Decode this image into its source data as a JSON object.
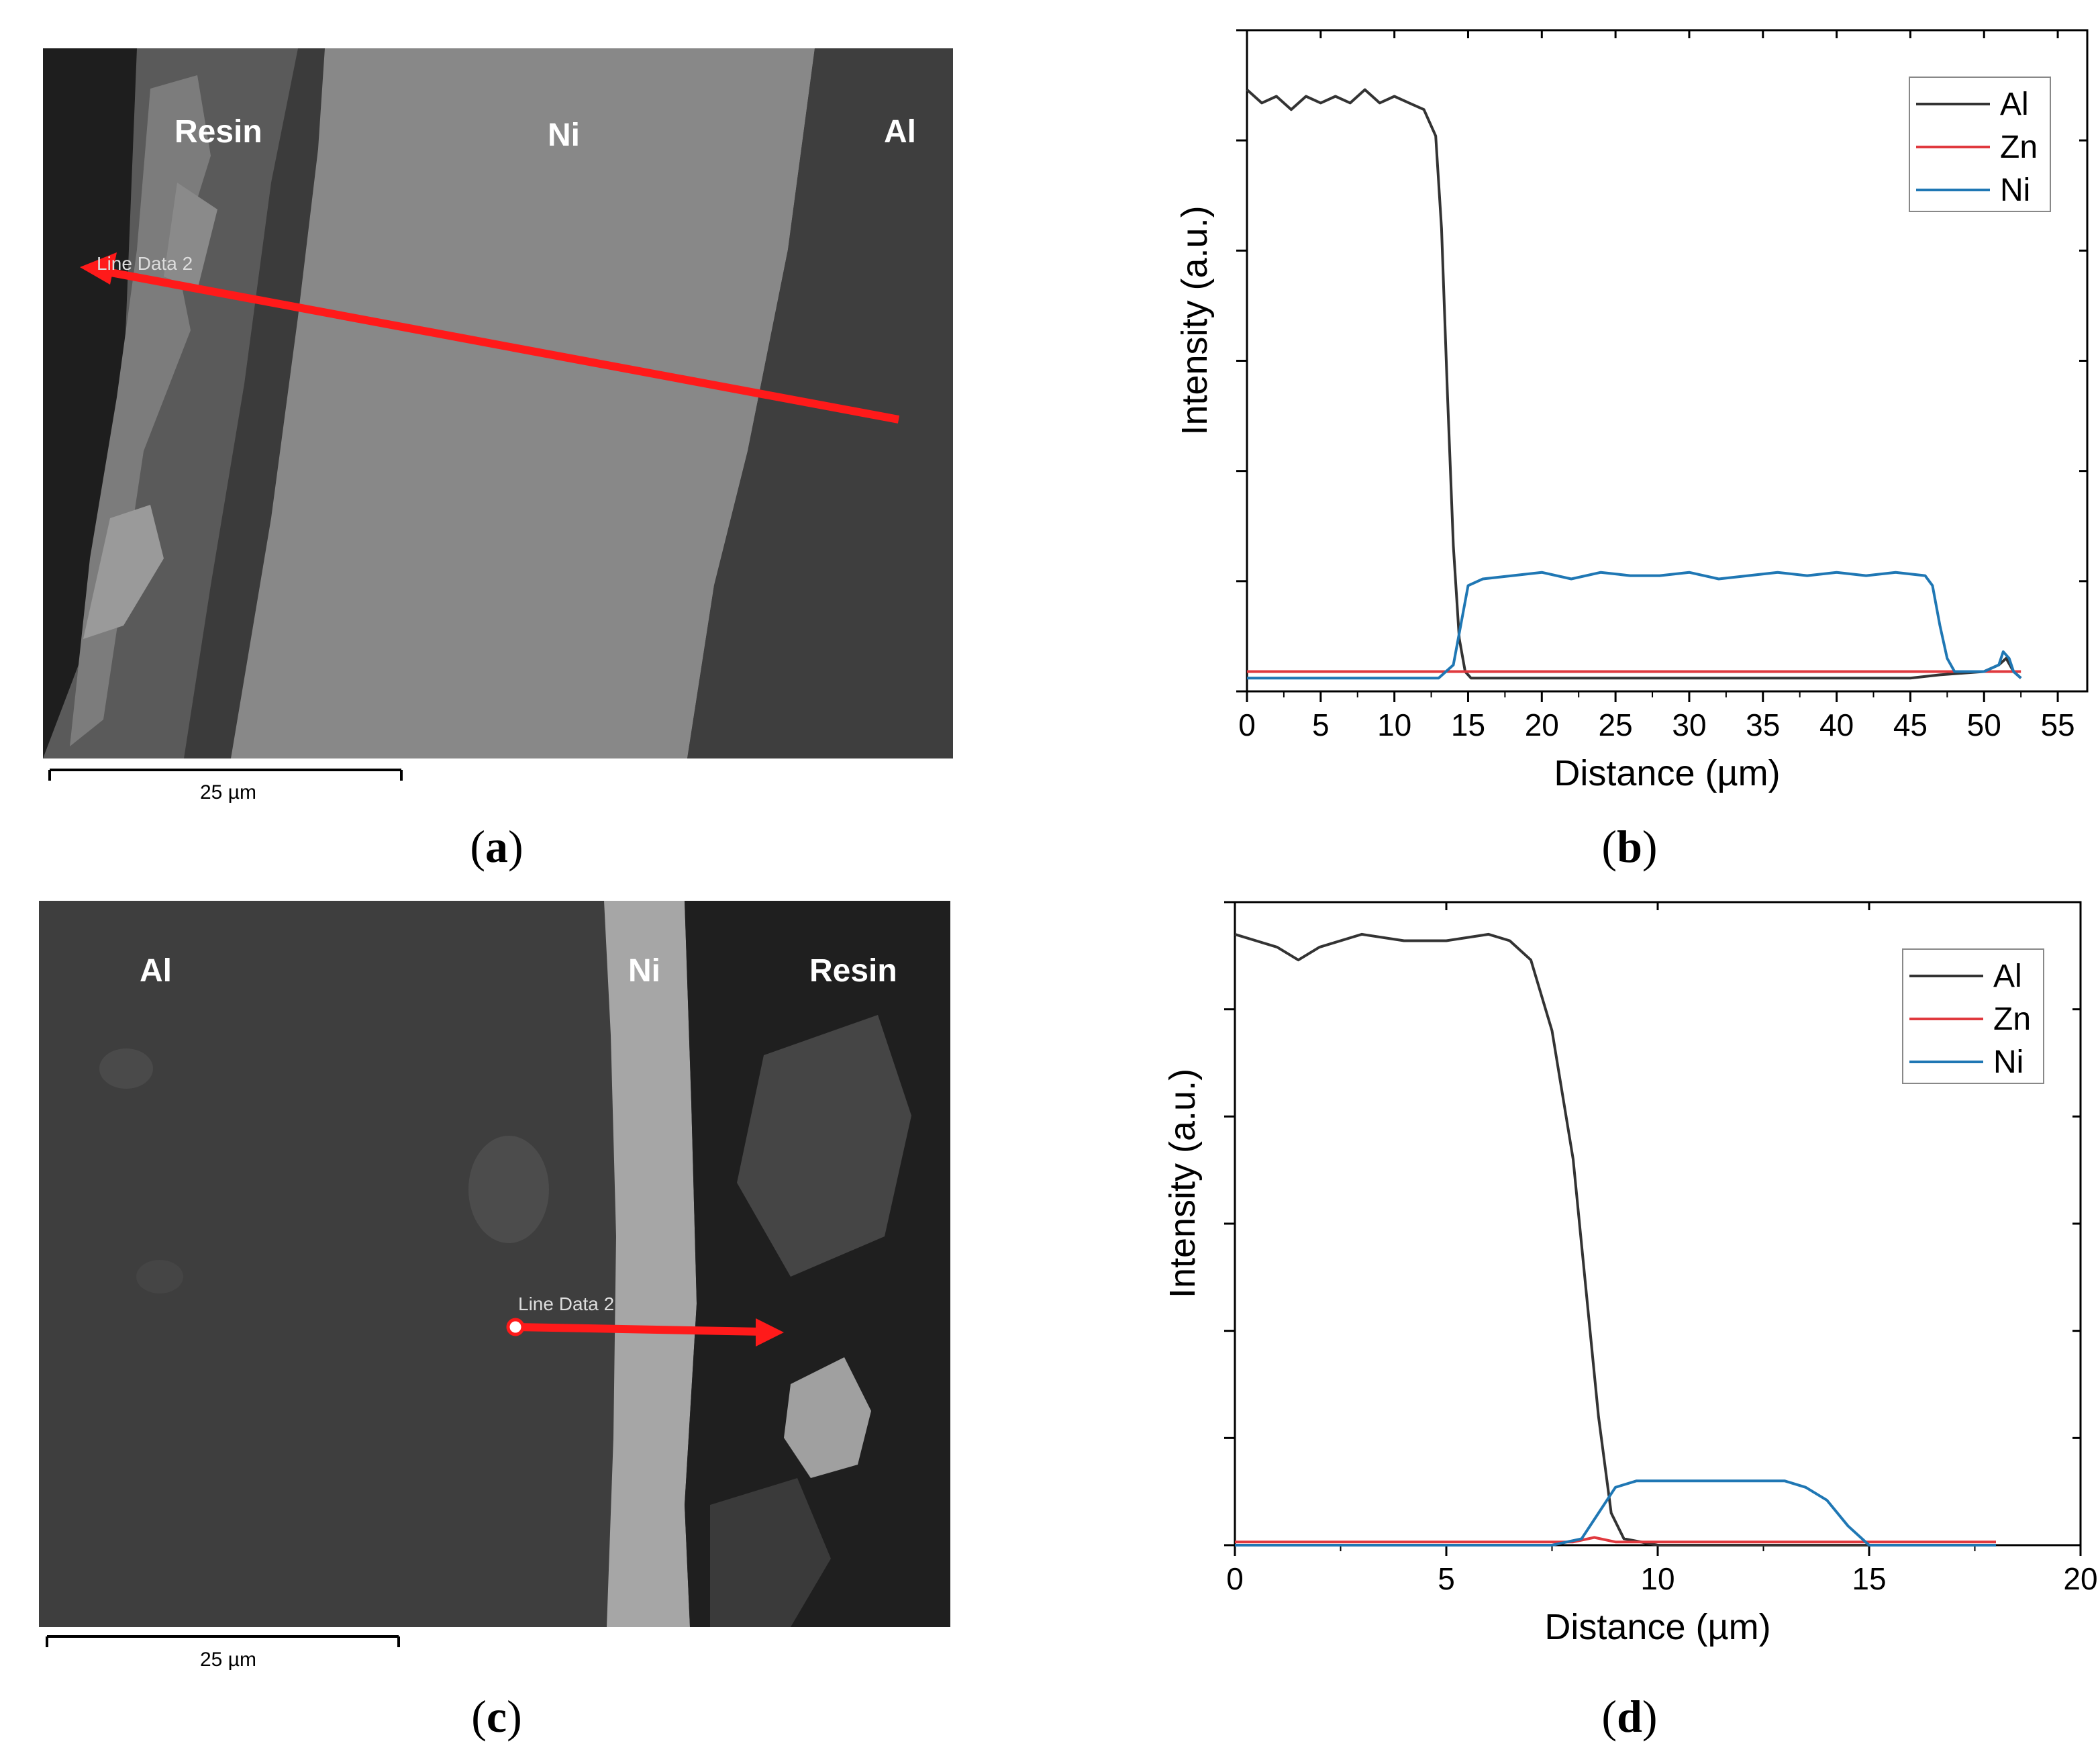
{
  "panels": {
    "a": {
      "caption_open": "(",
      "caption_letter": "a",
      "caption_close": ")",
      "labels": {
        "resin": "Resin",
        "ni": "Ni",
        "al": "Al"
      },
      "line_label": "Line Data 2",
      "scale_label": "25 µm"
    },
    "b": {
      "caption_open": "(",
      "caption_letter": "b",
      "caption_close": ")"
    },
    "c": {
      "caption_open": "(",
      "caption_letter": "c",
      "caption_close": ")",
      "labels": {
        "al": "Al",
        "ni": "Ni",
        "resin": "Resin"
      },
      "line_label": "Line Data 2",
      "scale_label": "25 µm"
    },
    "d": {
      "caption_open": "(",
      "caption_letter": "d",
      "caption_close": ")"
    }
  },
  "colors": {
    "Al": "#333333",
    "Zn": "#e0393e",
    "Ni": "#1f77b4",
    "arrow": "#ff1a1a"
  },
  "chart_data": [
    {
      "id": "b",
      "type": "line",
      "title": "",
      "xlabel": "Distance (µm)",
      "ylabel": "Intensity (a.u.)",
      "xlim": [
        0,
        57
      ],
      "ylim": [
        0,
        100
      ],
      "xticks": [
        0,
        5,
        10,
        15,
        20,
        25,
        30,
        35,
        40,
        45,
        50,
        55
      ],
      "xtick_labels": [
        "0",
        "5",
        "10",
        "15",
        "20",
        "25",
        "30",
        "35",
        "40",
        "45",
        "50",
        "55"
      ],
      "legend": [
        "Al",
        "Zn",
        "Ni"
      ],
      "legend_position": "top-right",
      "series": [
        {
          "name": "Al",
          "x": [
            0,
            1,
            2,
            3,
            4,
            5,
            6,
            7,
            8,
            9,
            10,
            11,
            12,
            12.8,
            13.2,
            13.6,
            14.0,
            14.4,
            14.8,
            15.2,
            16,
            20,
            25,
            30,
            35,
            40,
            45,
            47,
            50,
            51,
            51.5,
            52,
            52.5
          ],
          "y": [
            91,
            89,
            90,
            88,
            90,
            89,
            90,
            89,
            91,
            89,
            90,
            89,
            88,
            84,
            70,
            45,
            22,
            8,
            3,
            2,
            2,
            2,
            2,
            2,
            2,
            2,
            2,
            2.5,
            3,
            4,
            5,
            3,
            2
          ]
        },
        {
          "name": "Zn",
          "x": [
            0,
            5,
            10,
            15,
            20,
            25,
            30,
            35,
            40,
            45,
            47,
            50,
            52.5
          ],
          "y": [
            3,
            3,
            3,
            3,
            3,
            3,
            3,
            3,
            3,
            3,
            3,
            3,
            3
          ]
        },
        {
          "name": "Ni",
          "x": [
            0,
            5,
            10,
            13,
            14,
            14.5,
            15,
            16,
            18,
            20,
            22,
            24,
            26,
            28,
            30,
            32,
            34,
            36,
            38,
            40,
            42,
            44,
            46,
            46.5,
            47,
            47.5,
            48,
            50,
            51,
            51.3,
            51.7,
            52,
            52.5
          ],
          "y": [
            2,
            2,
            2,
            2,
            4,
            10,
            16,
            17,
            17.5,
            18,
            17,
            18,
            17.5,
            17.5,
            18,
            17,
            17.5,
            18,
            17.5,
            18,
            17.5,
            18,
            17.5,
            16,
            10,
            5,
            3,
            3,
            4,
            6,
            5,
            3,
            2
          ]
        }
      ]
    },
    {
      "id": "d",
      "type": "line",
      "title": "",
      "xlabel": "Distance (µm)",
      "ylabel": "Intensity (a.u.)",
      "xlim": [
        0,
        20
      ],
      "ylim": [
        0,
        100
      ],
      "xticks": [
        0,
        5,
        10,
        15,
        20
      ],
      "xtick_labels": [
        "0",
        "5",
        "10",
        "15",
        "20"
      ],
      "legend": [
        "Al",
        "Zn",
        "Ni"
      ],
      "legend_position": "top-right",
      "series": [
        {
          "name": "Al",
          "x": [
            0,
            0.5,
            1.0,
            1.5,
            2,
            3,
            4,
            5,
            6,
            6.5,
            7,
            7.5,
            8,
            8.3,
            8.6,
            8.9,
            9.2,
            10,
            12,
            14,
            16,
            18
          ],
          "y": [
            95,
            94,
            93,
            91,
            93,
            95,
            94,
            94,
            95,
            94,
            91,
            80,
            60,
            40,
            20,
            5,
            1,
            0,
            0,
            0,
            0,
            0
          ]
        },
        {
          "name": "Zn",
          "x": [
            0,
            5,
            8,
            8.5,
            9,
            12,
            15,
            18
          ],
          "y": [
            0.5,
            0.5,
            0.5,
            1.2,
            0.5,
            0.5,
            0.5,
            0.5
          ]
        },
        {
          "name": "Ni",
          "x": [
            0,
            5,
            7.5,
            8.2,
            8.6,
            9.0,
            9.5,
            10,
            11,
            12,
            13,
            13.5,
            14,
            14.5,
            15,
            16,
            18
          ],
          "y": [
            0,
            0,
            0,
            1,
            5,
            9,
            10,
            10,
            10,
            10,
            10,
            9,
            7,
            3,
            0,
            0,
            0
          ]
        }
      ]
    }
  ]
}
